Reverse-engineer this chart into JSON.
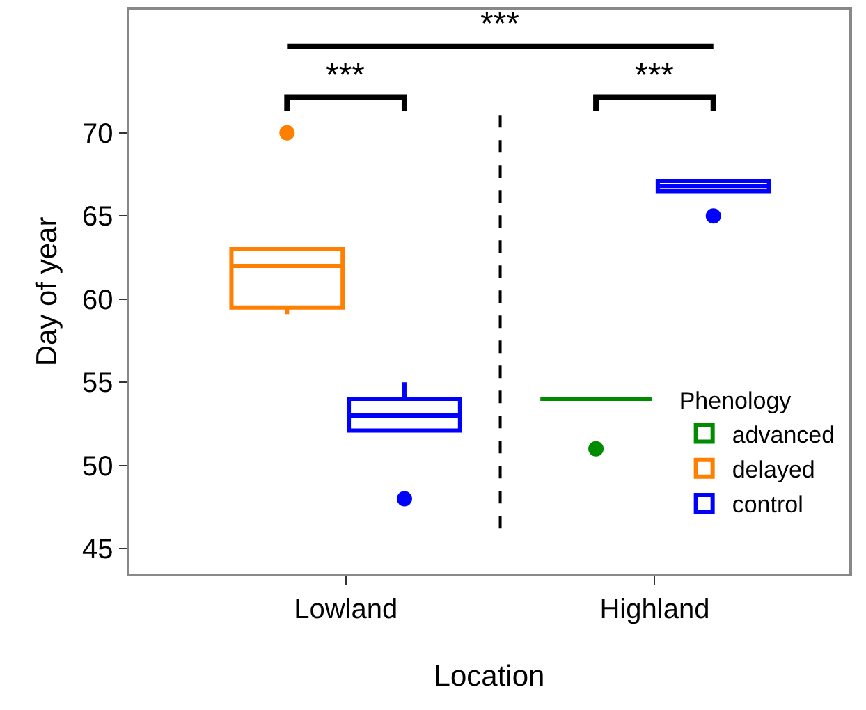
{
  "chart_data": {
    "type": "box",
    "xlabel": "Location",
    "ylabel": "Day of year",
    "legend_title": "Phenology",
    "categories": [
      "Lowland",
      "Highland"
    ],
    "series": [
      {
        "name": "advanced",
        "color": "#008b00",
        "boxes": [
          null,
          {
            "low": 54,
            "q1": 54,
            "median": 54,
            "q3": 54,
            "high": 54,
            "outliers": [
              51
            ]
          }
        ]
      },
      {
        "name": "delayed",
        "color": "#ff7f00",
        "boxes": [
          {
            "low": 59.1,
            "q1": 59.5,
            "median": 62,
            "q3": 63,
            "high": 63,
            "outliers": [
              70
            ]
          },
          null
        ]
      },
      {
        "name": "control",
        "color": "#0000ff",
        "boxes": [
          {
            "low": 52.1,
            "q1": 52.1,
            "median": 53,
            "q3": 54,
            "high": 55,
            "outliers": [
              48
            ]
          },
          {
            "low": 66.5,
            "q1": 66.5,
            "median": 66.8,
            "q3": 67.1,
            "high": 67.1,
            "outliers": [
              65
            ]
          }
        ]
      }
    ],
    "ylim": [
      43.5,
      77.4
    ],
    "yticks": [
      45,
      50,
      55,
      60,
      65,
      70
    ],
    "grid": false,
    "legend": "bottom right",
    "annotations": [
      "***",
      "***",
      "***"
    ]
  }
}
